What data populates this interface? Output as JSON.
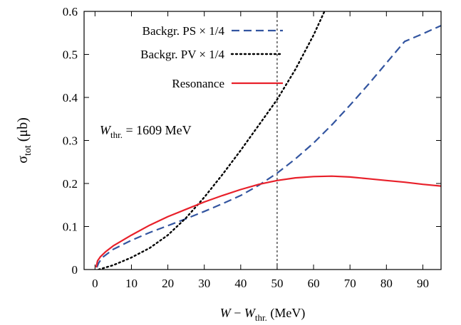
{
  "chart_data": {
    "type": "line",
    "xlabel": {
      "var": "W",
      "minus": " − ",
      "sub_var": "W",
      "sub": "thr.",
      "unit": " (MeV)"
    },
    "ylabel": {
      "sym": "σ",
      "sub": "tot",
      "unit": " (μb)"
    },
    "xlim": [
      -3,
      95
    ],
    "ylim": [
      0,
      0.6
    ],
    "xticks": [
      "0",
      "10",
      "20",
      "30",
      "40",
      "50",
      "60",
      "70",
      "80",
      "90"
    ],
    "xtick_values": [
      0,
      10,
      20,
      30,
      40,
      50,
      60,
      70,
      80,
      90
    ],
    "yticks": [
      "0",
      "0.1",
      "0.2",
      "0.3",
      "0.4",
      "0.5",
      "0.6"
    ],
    "ytick_values": [
      0,
      0.1,
      0.2,
      0.3,
      0.4,
      0.5,
      0.6
    ],
    "vertical_line_x": 50,
    "legend_position": "top-left",
    "series": [
      {
        "name": "Backgr. PS × 1/4",
        "color": "#3355a0",
        "style": "dashed",
        "x": [
          0.5,
          1,
          2,
          5,
          10,
          15,
          20,
          25,
          30,
          35,
          40,
          45,
          50,
          55,
          60,
          65,
          70,
          75,
          80,
          85,
          90,
          95
        ],
        "y": [
          0.005,
          0.015,
          0.028,
          0.047,
          0.068,
          0.086,
          0.102,
          0.118,
          0.135,
          0.153,
          0.172,
          0.196,
          0.224,
          0.257,
          0.294,
          0.336,
          0.382,
          0.43,
          0.48,
          0.53,
          0.548,
          0.567
        ]
      },
      {
        "name": "Backgr. PV × 1/4",
        "color": "#000000",
        "style": "dotted",
        "x": [
          1,
          5,
          10,
          15,
          20,
          25,
          30,
          35,
          40,
          45,
          50,
          55,
          60,
          63
        ],
        "y": [
          0.0,
          0.01,
          0.028,
          0.05,
          0.08,
          0.12,
          0.168,
          0.221,
          0.277,
          0.336,
          0.395,
          0.465,
          0.545,
          0.6
        ]
      },
      {
        "name": "Resonance",
        "color": "#e8202a",
        "style": "solid",
        "x": [
          0.3,
          0.7,
          1.5,
          3,
          5,
          7,
          10,
          15,
          20,
          25,
          30,
          35,
          40,
          45,
          50,
          55,
          60,
          65,
          70,
          75,
          80,
          85,
          90,
          95
        ],
        "y": [
          0.005,
          0.02,
          0.03,
          0.042,
          0.055,
          0.065,
          0.08,
          0.103,
          0.123,
          0.14,
          0.157,
          0.172,
          0.186,
          0.198,
          0.207,
          0.213,
          0.216,
          0.217,
          0.215,
          0.211,
          0.207,
          0.203,
          0.198,
          0.194
        ]
      }
    ],
    "annotation": {
      "var": "W",
      "sub": "thr.",
      "text": " = 1609 MeV"
    }
  }
}
